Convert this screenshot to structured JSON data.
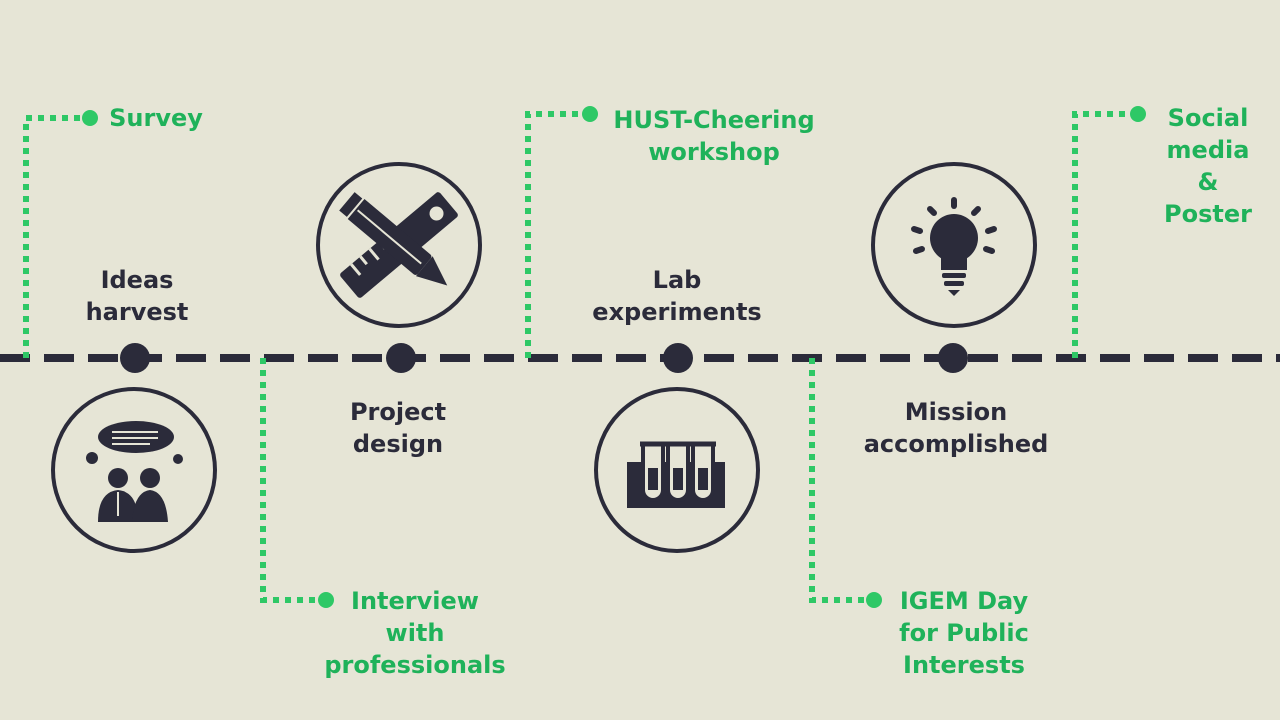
{
  "colors": {
    "background": "#e6e5d6",
    "timeline": "#2b2b3a",
    "activity": "#2ec866",
    "activity_text": "#1fb25a"
  },
  "stages": [
    {
      "label": "Ideas\nharvest",
      "icon": "people-thinking-icon"
    },
    {
      "label": "Project\ndesign",
      "icon": "pencil-ruler-icon"
    },
    {
      "label": "Lab\nexperiments",
      "icon": "test-tubes-icon"
    },
    {
      "label": "Mission\naccomplished",
      "icon": "lightbulb-icon"
    }
  ],
  "activities": [
    {
      "label": "Survey"
    },
    {
      "label": "Interview\nwith\nprofessionals"
    },
    {
      "label": "HUST-Cheering\nworkshop"
    },
    {
      "label": "IGEM Day\nfor Public\nInterests"
    },
    {
      "label": "Social\nmedia\n&\nPoster"
    }
  ]
}
